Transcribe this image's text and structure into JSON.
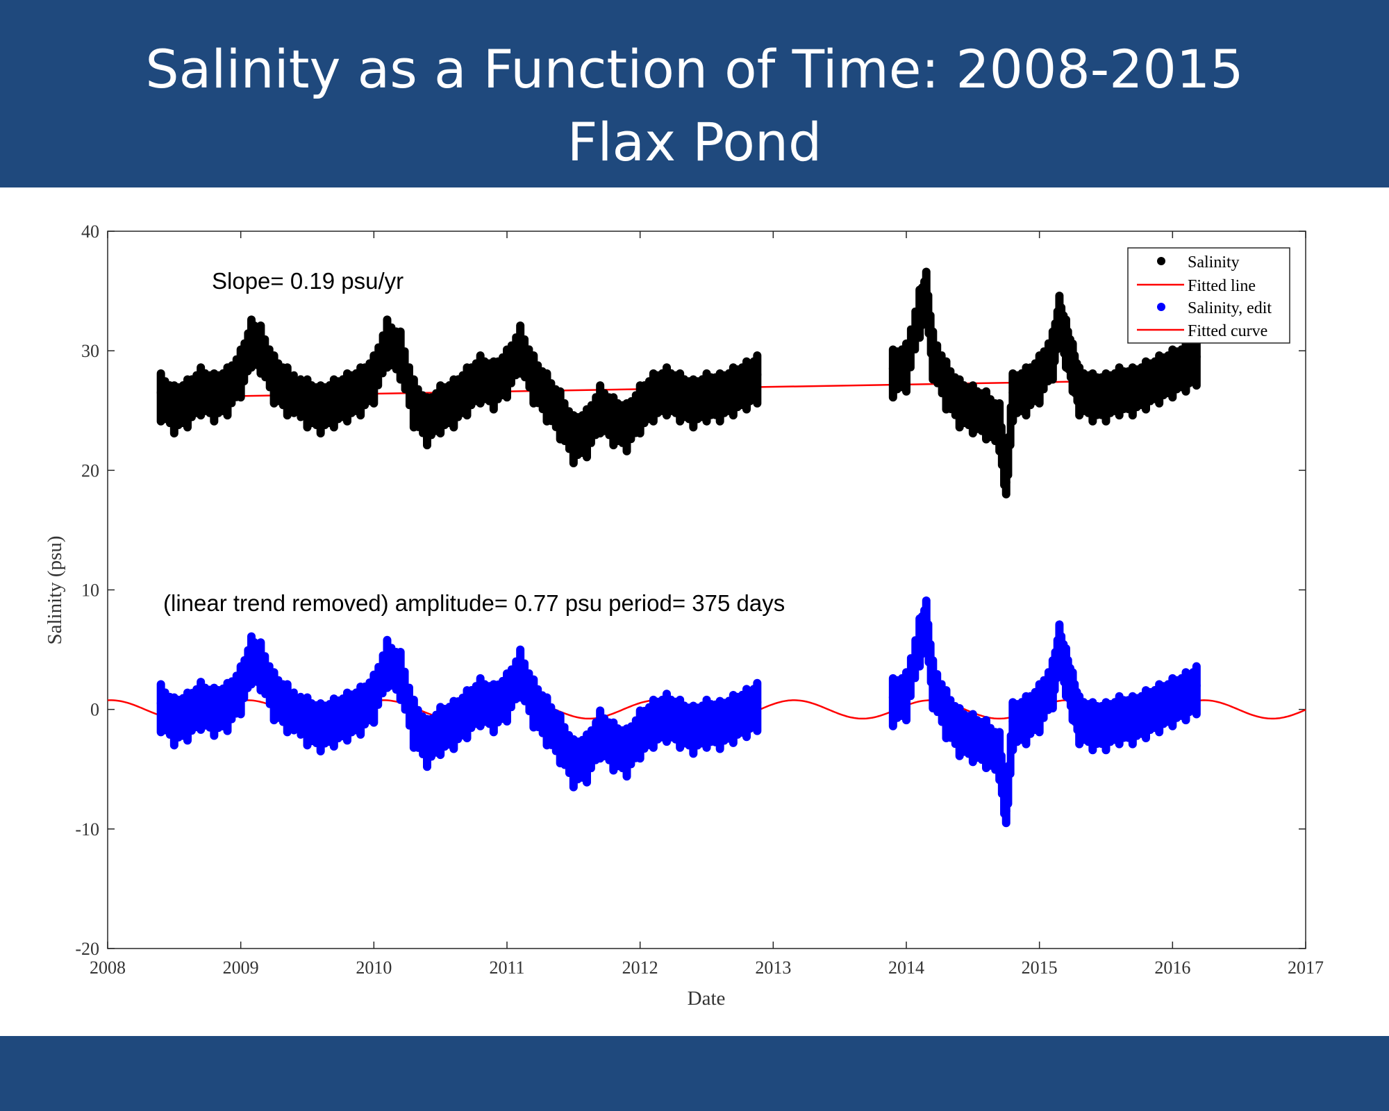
{
  "header": {
    "title_line1": "Salinity as a Function of Time: 2008-2015",
    "title_line2": "Flax Pond"
  },
  "colors": {
    "banner": "#1f497d",
    "salinity": "#000000",
    "salinity_edit": "#0000ff",
    "fit": "#ff0000"
  },
  "chart_data": {
    "type": "scatter",
    "title": "Salinity as a Function of Time: 2008-2015 Flax Pond",
    "xlabel": "Date",
    "ylabel": "Salinity (psu)",
    "xlim": [
      2008,
      2017
    ],
    "ylim": [
      -20,
      40
    ],
    "x_ticks": [
      "2008",
      "2009",
      "2010",
      "2011",
      "2012",
      "2013",
      "2014",
      "2015",
      "2016",
      "2017"
    ],
    "y_ticks": [
      "-20",
      "-10",
      "0",
      "10",
      "20",
      "30",
      "40"
    ],
    "annotations": {
      "slope": "Slope= 0.19 psu/yr",
      "trend": "(linear trend removed) amplitude= 0.77 psu  period= 375 days"
    },
    "legend": {
      "position": "top-right",
      "entries": [
        "Salinity",
        "Fitted line",
        "Salinity, edit",
        "Fitted curve"
      ]
    },
    "fitted_line": {
      "x": [
        2008.4,
        2016.2
      ],
      "y": [
        26.1,
        27.6
      ]
    },
    "fitted_curve": {
      "amplitude": 0.77,
      "period_days": 375,
      "x_range": [
        2008.0,
        2017.0
      ],
      "peak_at": 2009.05
    },
    "series": [
      {
        "name": "Salinity",
        "x": [
          2008.4,
          2008.5,
          2008.6,
          2008.7,
          2008.8,
          2008.9,
          2009.0,
          2009.08,
          2009.15,
          2009.25,
          2009.35,
          2009.5,
          2009.6,
          2009.7,
          2009.8,
          2009.9,
          2010.0,
          2010.1,
          2010.2,
          2010.3,
          2010.4,
          2010.5,
          2010.6,
          2010.7,
          2010.8,
          2010.9,
          2011.0,
          2011.1,
          2011.2,
          2011.3,
          2011.4,
          2011.5,
          2011.6,
          2011.7,
          2011.8,
          2011.9,
          2012.0,
          2012.1,
          2012.2,
          2012.3,
          2012.4,
          2012.5,
          2012.6,
          2012.7,
          2012.8,
          2012.88,
          2013.9,
          2014.0,
          2014.1,
          2014.15,
          2014.2,
          2014.3,
          2014.4,
          2014.5,
          2014.6,
          2014.7,
          2014.75,
          2014.8,
          2014.9,
          2015.0,
          2015.1,
          2015.15,
          2015.2,
          2015.25,
          2015.3,
          2015.4,
          2015.5,
          2015.6,
          2015.7,
          2015.8,
          2015.9,
          2016.0,
          2016.1,
          2016.18
        ],
        "y": [
          26.5,
          25.5,
          26.0,
          27.0,
          26.5,
          27.0,
          28.5,
          31.0,
          30.5,
          28.0,
          27.0,
          26.0,
          25.5,
          26.0,
          26.5,
          27.0,
          28.0,
          31.0,
          30.0,
          26.0,
          24.5,
          25.5,
          26.0,
          27.0,
          28.0,
          27.5,
          28.5,
          30.5,
          28.0,
          26.5,
          25.0,
          23.0,
          23.5,
          25.5,
          24.5,
          24.0,
          25.5,
          26.5,
          27.0,
          26.5,
          26.0,
          26.5,
          26.5,
          27.0,
          27.5,
          28.0,
          28.5,
          29.0,
          33.5,
          35.0,
          30.0,
          27.5,
          26.0,
          25.5,
          25.0,
          24.0,
          19.0,
          26.5,
          27.0,
          28.0,
          30.0,
          33.0,
          31.0,
          29.0,
          27.0,
          26.5,
          26.5,
          27.0,
          27.0,
          27.5,
          28.0,
          28.5,
          29.0,
          29.5
        ]
      },
      {
        "name": "Salinity, edit",
        "x": [
          2008.4,
          2008.5,
          2008.6,
          2008.7,
          2008.8,
          2008.9,
          2009.0,
          2009.08,
          2009.15,
          2009.25,
          2009.35,
          2009.5,
          2009.6,
          2009.7,
          2009.8,
          2009.9,
          2010.0,
          2010.1,
          2010.2,
          2010.3,
          2010.4,
          2010.5,
          2010.6,
          2010.7,
          2010.8,
          2010.9,
          2011.0,
          2011.1,
          2011.2,
          2011.3,
          2011.4,
          2011.5,
          2011.6,
          2011.7,
          2011.8,
          2011.9,
          2012.0,
          2012.1,
          2012.2,
          2012.3,
          2012.4,
          2012.5,
          2012.6,
          2012.7,
          2012.8,
          2012.88,
          2013.9,
          2014.0,
          2014.1,
          2014.15,
          2014.2,
          2014.3,
          2014.4,
          2014.5,
          2014.6,
          2014.7,
          2014.75,
          2014.8,
          2014.9,
          2015.0,
          2015.1,
          2015.15,
          2015.2,
          2015.25,
          2015.3,
          2015.4,
          2015.5,
          2015.6,
          2015.7,
          2015.8,
          2015.9,
          2016.0,
          2016.1,
          2016.18
        ],
        "y": [
          0.5,
          -0.6,
          -0.2,
          0.7,
          0.2,
          0.6,
          2.0,
          4.5,
          4.0,
          1.5,
          0.5,
          -0.6,
          -1.1,
          -0.7,
          -0.2,
          0.3,
          1.3,
          4.2,
          3.2,
          -0.8,
          -2.4,
          -1.4,
          -0.9,
          0.0,
          1.0,
          0.5,
          1.4,
          3.4,
          0.9,
          -0.6,
          -2.1,
          -4.1,
          -3.7,
          -1.7,
          -2.7,
          -3.2,
          -1.7,
          -0.8,
          -0.3,
          -0.8,
          -1.3,
          -0.8,
          -0.9,
          -0.4,
          0.1,
          0.6,
          1.0,
          1.5,
          6.0,
          7.5,
          2.5,
          0.0,
          -1.5,
          -2.0,
          -2.5,
          -3.5,
          -8.5,
          -1.0,
          -0.5,
          0.5,
          2.5,
          5.5,
          3.5,
          1.5,
          -0.5,
          -1.0,
          -1.0,
          -0.5,
          -0.5,
          0.0,
          0.5,
          1.0,
          1.5,
          2.0
        ]
      }
    ]
  }
}
